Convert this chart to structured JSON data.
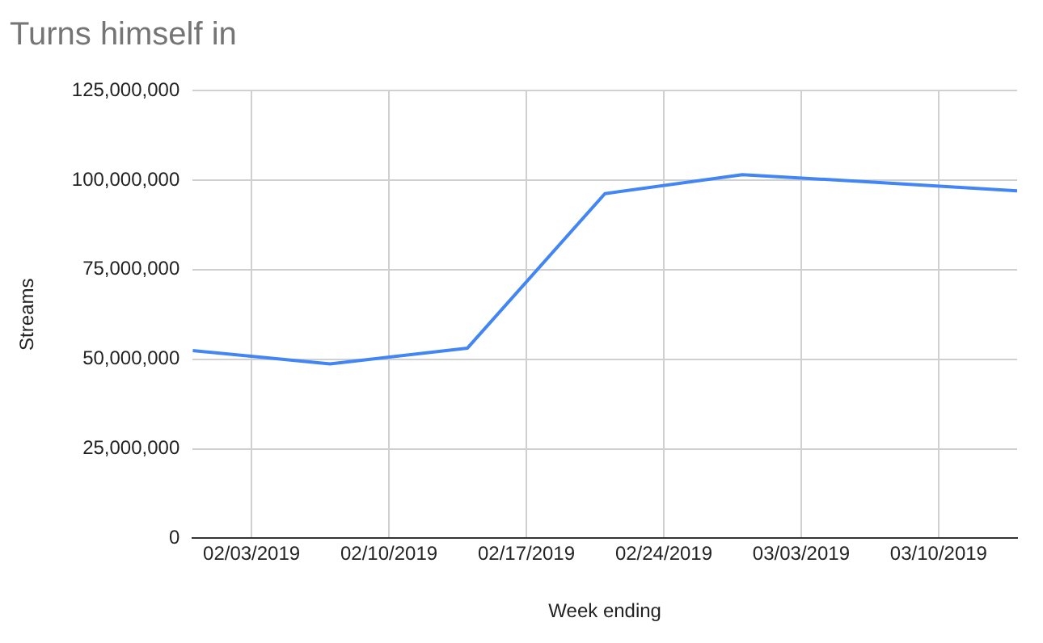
{
  "chart_data": {
    "type": "line",
    "title": "Turns himself in",
    "xlabel": "Week ending",
    "ylabel": "Streams",
    "x": [
      "2019-01-31",
      "2019-02-07",
      "2019-02-14",
      "2019-02-21",
      "2019-02-28",
      "2019-03-07",
      "2019-03-14"
    ],
    "series": [
      {
        "color": "#4285f4",
        "values": [
          52400000,
          48700000,
          53100000,
          96200000,
          101500000,
          99300000,
          97000000
        ]
      }
    ],
    "xlim": [
      "2019-01-31",
      "2019-03-14"
    ],
    "xticks": [
      {
        "value": "2019-02-03",
        "label": "02/03/2019"
      },
      {
        "value": "2019-02-10",
        "label": "02/10/2019"
      },
      {
        "value": "2019-02-17",
        "label": "02/17/2019"
      },
      {
        "value": "2019-02-24",
        "label": "02/24/2019"
      },
      {
        "value": "2019-03-03",
        "label": "03/03/2019"
      },
      {
        "value": "2019-03-10",
        "label": "03/10/2019"
      }
    ],
    "ylim": [
      0,
      125000000
    ],
    "yticks": [
      {
        "value": 0,
        "label": "0"
      },
      {
        "value": 25000000,
        "label": "25,000,000"
      },
      {
        "value": 50000000,
        "label": "50,000,000"
      },
      {
        "value": 75000000,
        "label": "75,000,000"
      },
      {
        "value": 100000000,
        "label": "100,000,000"
      },
      {
        "value": 125000000,
        "label": "125,000,000"
      }
    ],
    "grid": true,
    "legend": false,
    "marker": "none",
    "line_style": "solid"
  }
}
